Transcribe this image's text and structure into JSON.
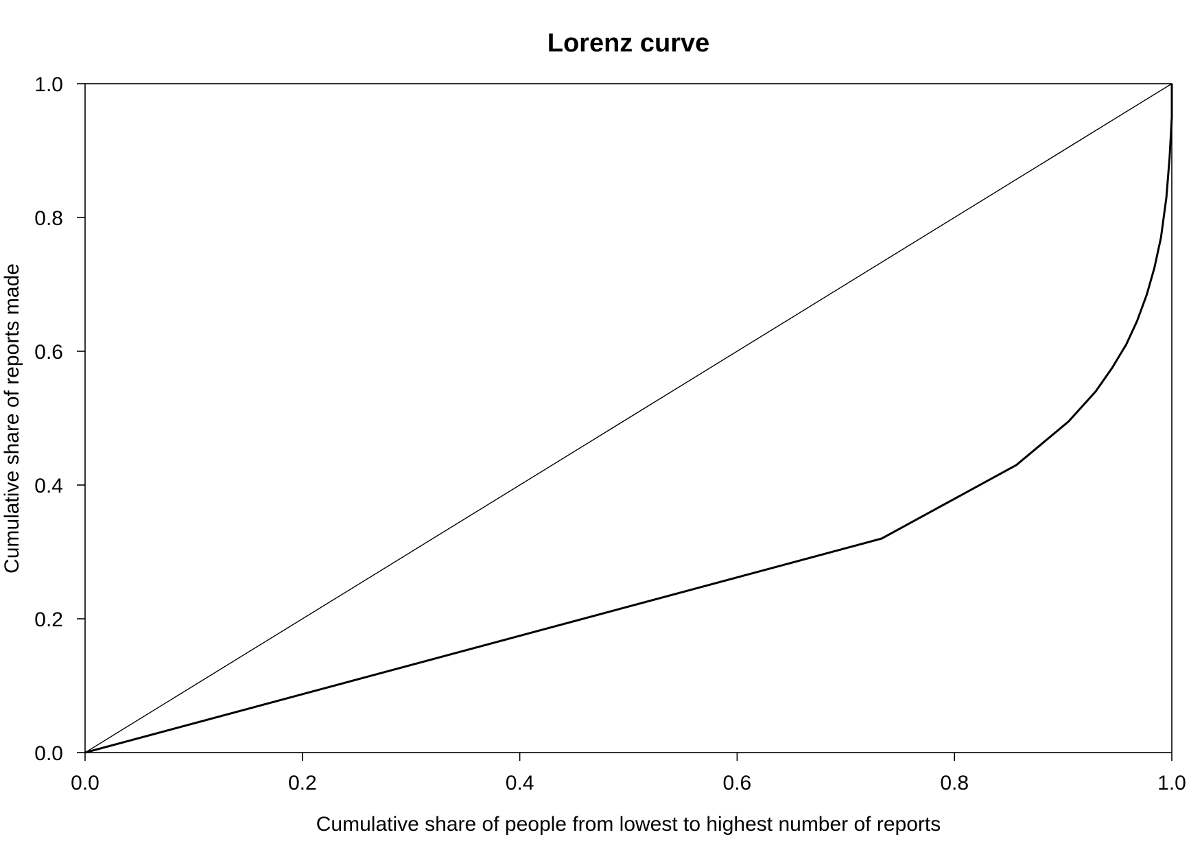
{
  "chart_data": {
    "type": "line",
    "title": "Lorenz curve",
    "xlabel": "Cumulative share of people from lowest to highest number of reports",
    "ylabel": "Cumulative share of reports made",
    "xlim": [
      0,
      1
    ],
    "ylim": [
      0,
      1
    ],
    "x_ticks": [
      "0.0",
      "0.2",
      "0.4",
      "0.6",
      "0.8",
      "1.0"
    ],
    "y_ticks": [
      "0.0",
      "0.2",
      "0.4",
      "0.6",
      "0.8",
      "1.0"
    ],
    "grid": false,
    "series": [
      {
        "role": "line of equality",
        "color": "#000000",
        "x": [
          0,
          1
        ],
        "y": [
          0,
          1
        ]
      },
      {
        "role": "lorenz curve",
        "color": "#000000",
        "x": [
          0,
          0.733,
          0.857,
          0.905,
          0.93,
          0.945,
          0.958,
          0.968,
          0.977,
          0.984,
          0.99,
          0.995,
          0.998,
          1.0,
          1.0
        ],
        "y": [
          0,
          0.32,
          0.43,
          0.495,
          0.54,
          0.575,
          0.61,
          0.645,
          0.685,
          0.725,
          0.77,
          0.83,
          0.89,
          0.95,
          1.0
        ]
      }
    ]
  }
}
